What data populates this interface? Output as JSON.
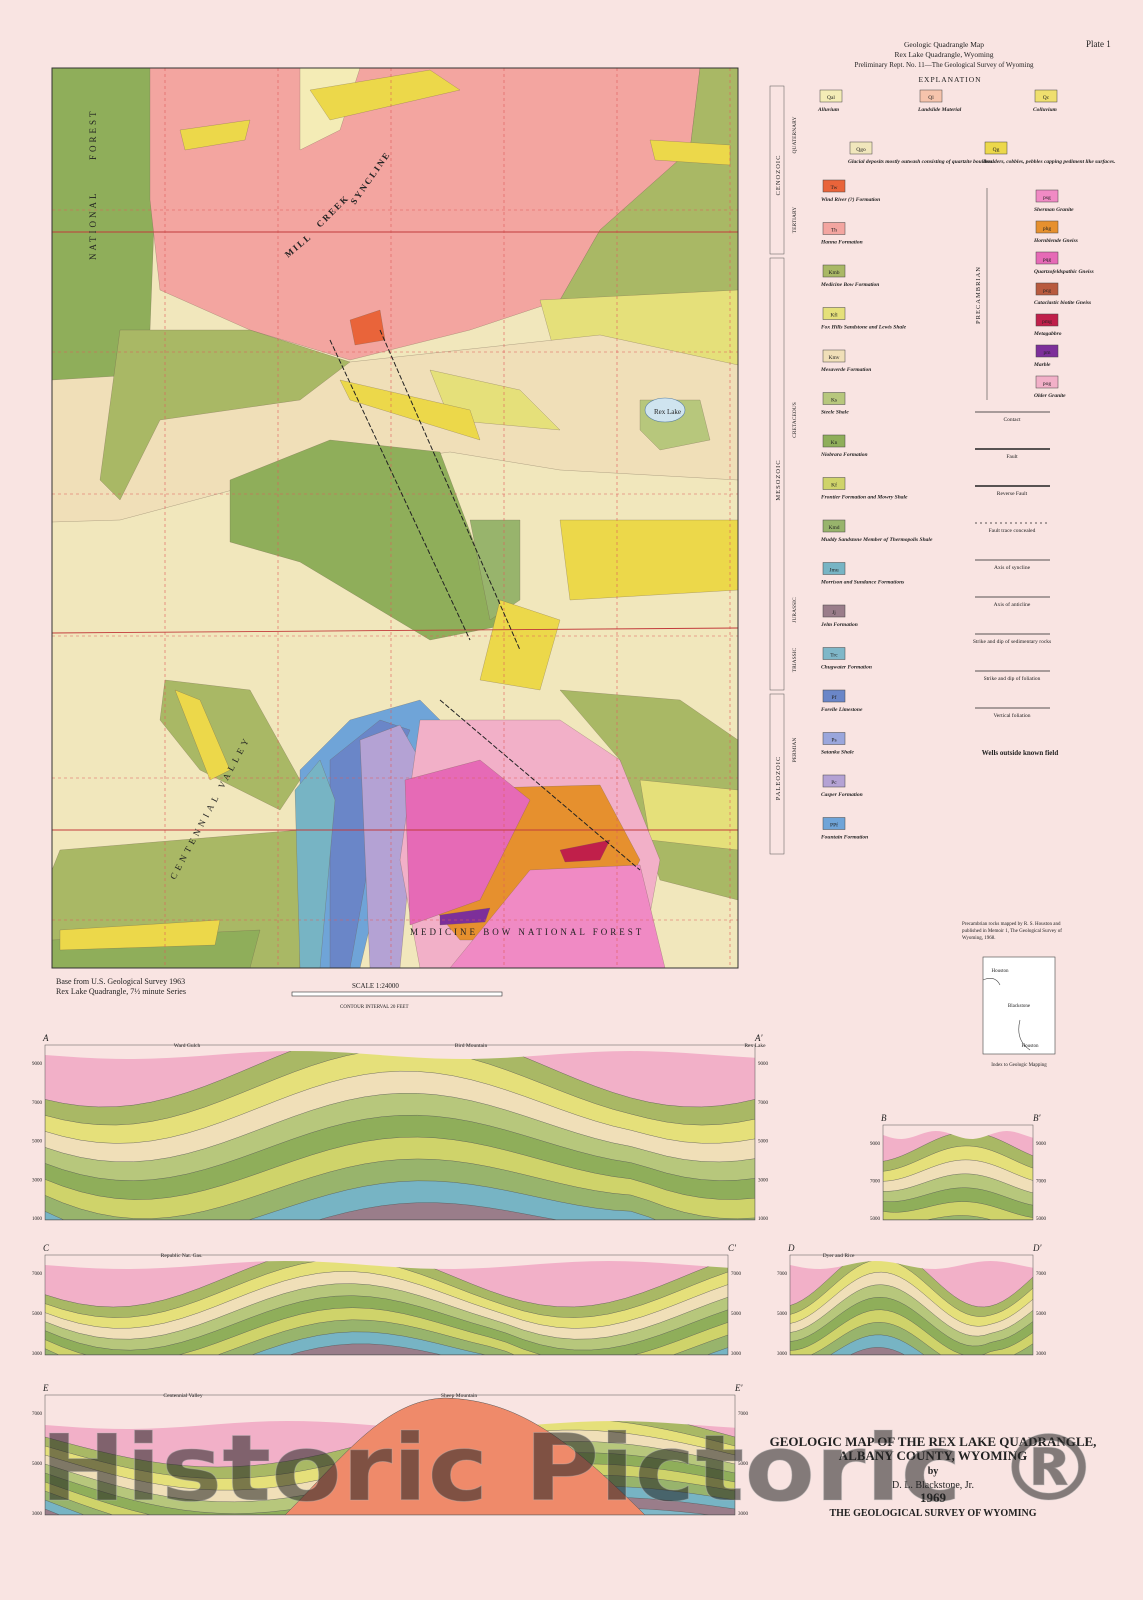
{
  "header": {
    "lines": [
      "Geologic Quadrangle Map",
      "Rex Lake Quadrangle, Wyoming",
      "Preliminary Rept. No. 11—The Geological Survey of Wyoming"
    ],
    "plate": "Plate 1"
  },
  "explanation": {
    "title": "EXPLANATION",
    "eras": [
      "CENOZOIC",
      "MESOZOIC",
      "PALEOZOIC",
      "PRECAMBRIAN"
    ],
    "periods": [
      "QUATERNARY",
      "TERTIARY",
      "CRETACEOUS",
      "JURASSIC",
      "TRIASSIC",
      "PERMIAN"
    ],
    "quaternary_units": [
      {
        "code": "Qal",
        "name": "Alluvium",
        "color": "#f4ecb6"
      },
      {
        "code": "Ql",
        "name": "Landslide Material",
        "color": "#f6c4ac"
      },
      {
        "code": "Qc",
        "name": "Colluvium",
        "color": "#efdf6e"
      },
      {
        "code": "Qgo",
        "name": "Glacial deposits mostly outwash consisting of quartzite boulders.",
        "color": "#f1e7bc"
      },
      {
        "code": "Qg",
        "name": "Boulders, cobbles, pebbles capping pediment like surfaces.",
        "color": "#ecd84a"
      }
    ],
    "units": [
      {
        "code": "Tw",
        "name": "Wind River (?) Formation",
        "color": "#e9643a"
      },
      {
        "code": "Th",
        "name": "Hanna Formation",
        "color": "#f3a5a0"
      },
      {
        "code": "Kmb",
        "name": "Medicine Bow Formation",
        "color": "#a9b865"
      },
      {
        "code": "Kfl",
        "name": "Fox Hills Sandstone and Lewis Shale",
        "color": "#e5e07a"
      },
      {
        "code": "Kmv",
        "name": "Mesaverde Formation",
        "color": "#f0dfb8"
      },
      {
        "code": "Ks",
        "name": "Steele Shale",
        "color": "#b7c77c"
      },
      {
        "code": "Kn",
        "name": "Niobrara Formation",
        "color": "#8fae5a"
      },
      {
        "code": "Kf",
        "name": "Frontier Formation and Mowry Shale",
        "color": "#cfd36a"
      },
      {
        "code": "Kmd",
        "name": "Muddy Sandstone Member of Thermopolis Shale",
        "color": "#98b46c"
      },
      {
        "code": "Jmu",
        "name": "Morrison and Sundance Formations",
        "color": "#77b4c4"
      },
      {
        "code": "Jj",
        "name": "Jelm Formation",
        "color": "#9a7d8a"
      },
      {
        "code": "Trc",
        "name": "Chugwater Formation",
        "color": "#7fb7c8"
      },
      {
        "code": "Pf",
        "name": "Forelle Limestone",
        "color": "#6a86c8"
      },
      {
        "code": "Ps",
        "name": "Satanka Shale",
        "color": "#9aa6dc"
      },
      {
        "code": "Pc",
        "name": "Casper Formation",
        "color": "#b4a2d4"
      },
      {
        "code": "PPf",
        "name": "Fountain Formation",
        "color": "#6fa4d8"
      }
    ],
    "precambrian_units": [
      {
        "code": "psg",
        "name": "Sherman Granite",
        "color": "#f08ac4"
      },
      {
        "code": "phg",
        "name": "Hornblende Gneiss",
        "color": "#e6902e"
      },
      {
        "code": "pqg",
        "name": "Quartzofeldspathic Gneiss",
        "color": "#e66ab6"
      },
      {
        "code": "pcg",
        "name": "Cataclastic biotite Gneiss",
        "color": "#b85a3e"
      },
      {
        "code": "pmg",
        "name": "Metagabbro",
        "color": "#c01f4a"
      },
      {
        "code": "pm",
        "name": "Marble",
        "color": "#7d2f9a"
      },
      {
        "code": "pog",
        "name": "Older Granite",
        "color": "#f2b0c8"
      }
    ],
    "structure_symbols": [
      "Contact",
      "Fault",
      "Reverse Fault",
      "Fault trace concealed",
      "Axis of syncline",
      "Axis of anticline",
      "Strike and dip of sedimentary rocks",
      "Strike and dip of foliation",
      "Vertical foliation"
    ],
    "wells_title": "Wells outside known field"
  },
  "map": {
    "labels": [
      "MILL",
      "CREEK",
      "SYNCLINE",
      "MEDICINE BOW NATIONAL FOREST",
      "CENTENNIAL VALLEY",
      "Rex Lake",
      "NATIONAL",
      "FOREST"
    ],
    "base_note": [
      "Base from U.S. Geological Survey 1963",
      "Rex Lake Quadrangle, 7½ minute Series"
    ],
    "scale": "SCALE 1:24000",
    "contour_note": "CONTOUR INTERVAL 20 FEET"
  },
  "sections": [
    {
      "start": "A",
      "end": "A'",
      "features": [
        "Ward Gulch",
        "Bird Mountain",
        "Rex Lake"
      ],
      "elevations": [
        "9000",
        "7000",
        "5000",
        "3000",
        "1000"
      ]
    },
    {
      "start": "B",
      "end": "B'",
      "features": [],
      "elevations": [
        "9000",
        "7000",
        "5000"
      ]
    },
    {
      "start": "C",
      "end": "C'",
      "features": [
        "Republic Nat. Gas."
      ],
      "elevations": [
        "7000",
        "5000",
        "3000"
      ]
    },
    {
      "start": "D",
      "end": "D'",
      "features": [
        "Dyer and Rice"
      ],
      "elevations": [
        "7000",
        "5000",
        "3000"
      ]
    },
    {
      "start": "E",
      "end": "E'",
      "features": [
        "Centennial Valley",
        "Sheep Mountain"
      ],
      "elevations": [
        "7000",
        "5000",
        "3000"
      ]
    }
  ],
  "precambrian_note": [
    "Precambrian rocks mapped by R. S. Houston and",
    "published in Memoir 1, The Geological Survey of",
    "Wyoming, 1968."
  ],
  "index_map": {
    "title": "Index to Geologic Mapping",
    "areas": [
      "Houston",
      "Blackstone",
      "Houston"
    ]
  },
  "title_block": {
    "lines": [
      "GEOLOGIC MAP OF THE REX LAKE QUADRANGLE,",
      "ALBANY COUNTY, WYOMING",
      "by",
      "D. L. Blackstone, Jr.",
      "1969",
      "THE GEOLOGICAL SURVEY OF WYOMING"
    ]
  },
  "watermark": "Historic Pictoric ®"
}
